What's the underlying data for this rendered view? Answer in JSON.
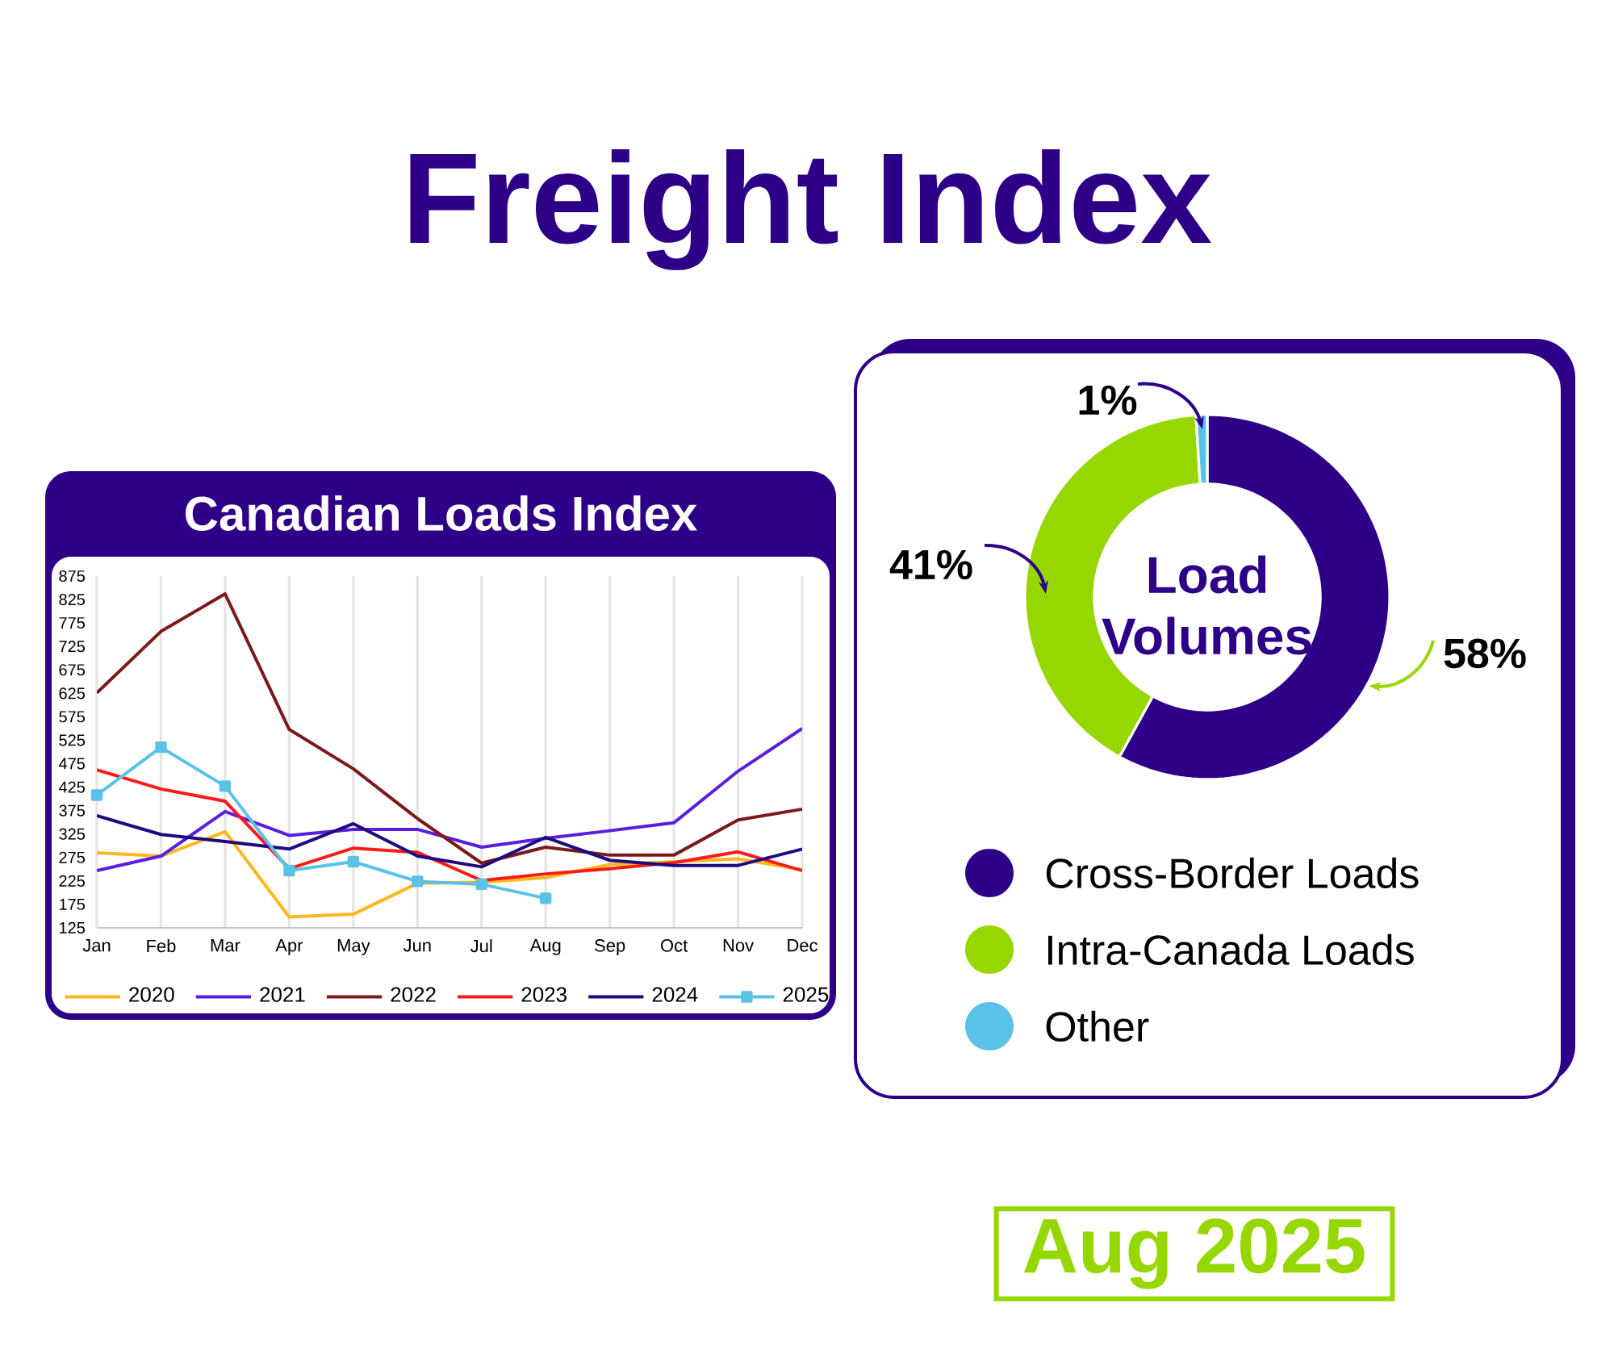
{
  "chart_data": [
    {
      "type": "line",
      "title": "Canadian Loads Index",
      "annotations": [
        "Freight Index",
        "Aug 2025"
      ],
      "categories": [
        "Jan",
        "Feb",
        "Mar",
        "Apr",
        "May",
        "Jun",
        "Jul",
        "Aug",
        "Sep",
        "Oct",
        "Nov",
        "Dec"
      ],
      "series": [
        {
          "name": "2020",
          "color": "#ffb81c",
          "values": [
            285,
            278,
            330,
            148,
            154,
            220,
            222,
            232,
            260,
            266,
            272,
            249
          ]
        },
        {
          "name": "2021",
          "color": "#5b1ee0",
          "values": [
            247,
            278,
            373,
            322,
            335,
            335,
            297,
            316,
            332,
            349,
            459,
            550
          ]
        },
        {
          "name": "2022",
          "color": "#7a1a1a",
          "values": [
            626,
            757,
            837,
            548,
            464,
            358,
            263,
            297,
            280,
            280,
            355,
            378
          ]
        },
        {
          "name": "2023",
          "color": "#ff1a1a",
          "values": [
            462,
            421,
            395,
            251,
            295,
            286,
            226,
            240,
            251,
            264,
            287,
            247
          ]
        },
        {
          "name": "2024",
          "color": "#1f0a80",
          "values": [
            364,
            324,
            309,
            293,
            347,
            278,
            255,
            318,
            269,
            258,
            258,
            293
          ]
        },
        {
          "name": "2025",
          "color": "#5bc2e7",
          "marker": "square",
          "values": [
            408,
            510,
            427,
            247,
            266,
            224,
            218,
            188,
            null,
            null,
            null,
            null
          ]
        }
      ],
      "ylim": [
        125,
        875
      ],
      "yticks": [
        125,
        175,
        225,
        275,
        325,
        375,
        425,
        475,
        525,
        575,
        625,
        675,
        725,
        775,
        825,
        875
      ],
      "grid": "x",
      "legend": "bottom",
      "marker": "none"
    },
    {
      "type": "donut",
      "title": "Load Volumes",
      "categories": [
        "Cross-Border Loads",
        "Intra-Canada Loads",
        "Other"
      ],
      "values": [
        58,
        41,
        1
      ],
      "colors": [
        "#2e0087",
        "#97d700",
        "#5bc2e7"
      ],
      "value_labels": [
        "58%",
        "41%",
        "1%"
      ],
      "legend": "bottom"
    }
  ]
}
